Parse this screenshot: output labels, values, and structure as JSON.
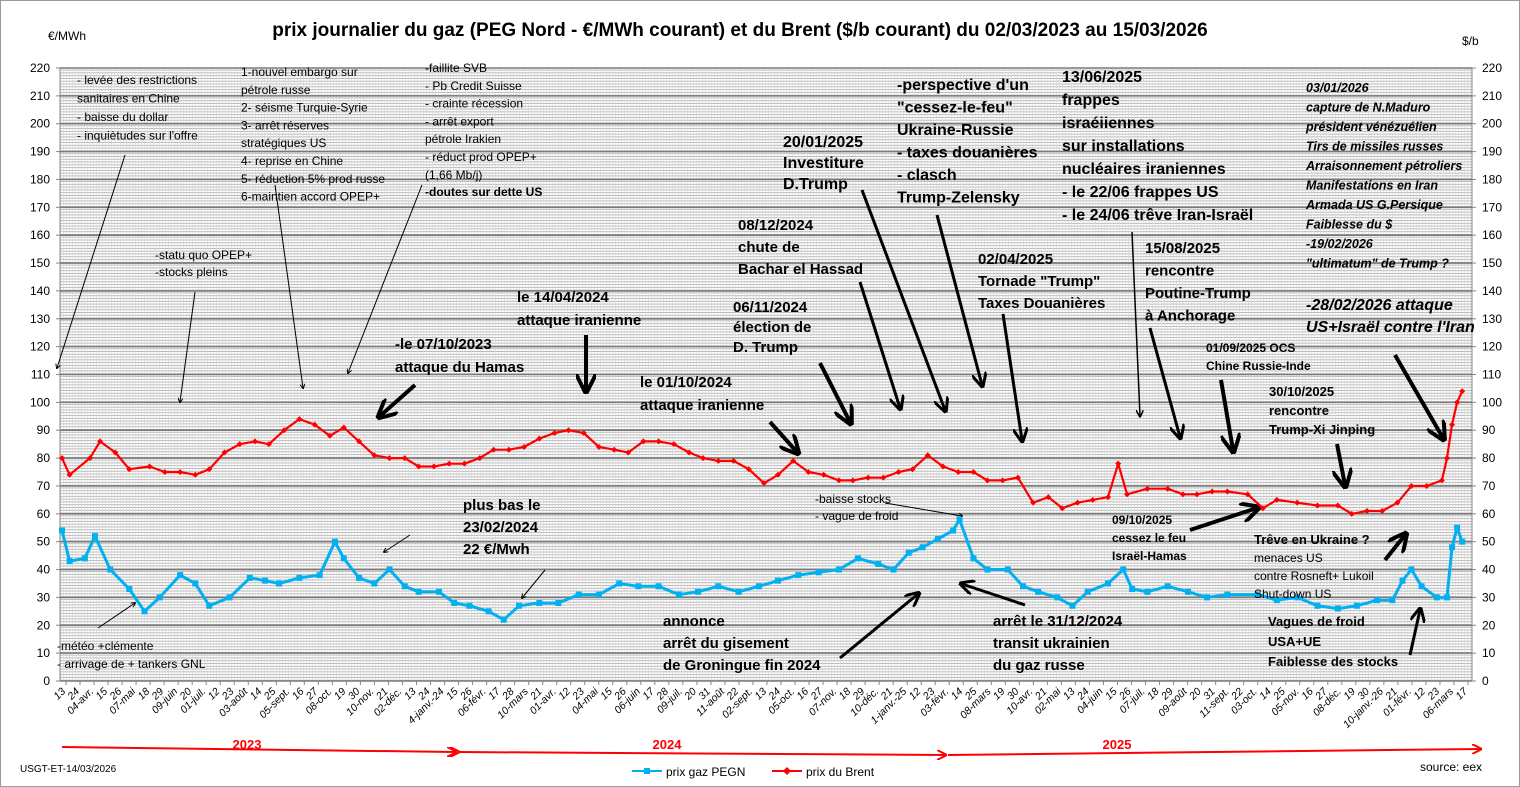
{
  "chart_data": {
    "type": "line",
    "title": "prix journalier du gaz (PEG Nord - €/MWh courant) et du Brent ($/b courant) du 02/03/2023  au 15/03/2026",
    "ylabel_left": "€/MWh",
    "ylabel_right": "$/b",
    "ylim": [
      0,
      220
    ],
    "yticks": [
      0,
      10,
      20,
      30,
      40,
      50,
      60,
      70,
      80,
      90,
      100,
      110,
      120,
      130,
      140,
      150,
      160,
      170,
      180,
      190,
      200,
      210,
      220
    ],
    "xlim_days": [
      0,
      1106
    ],
    "grid": true,
    "legend_position": "bottom-center",
    "xtick_labels": [
      "13",
      "24",
      "04-avr.",
      "15",
      "26",
      "07-mai",
      "18",
      "29",
      "09-juin",
      "20",
      "01-juil.",
      "12",
      "23",
      "03-août",
      "14",
      "25",
      "05-sept.",
      "16",
      "27",
      "08-oct.",
      "19",
      "30",
      "10-nov.",
      "21",
      "02-déc.",
      "13",
      "24",
      "4-janv.-24",
      "15",
      "26",
      "06-févr.",
      "17",
      "28",
      "10-mars",
      "21",
      "01-avr.",
      "12",
      "23",
      "04-mai",
      "15",
      "26",
      "06-juin",
      "17",
      "28",
      "09-juil.",
      "20",
      "31",
      "11-août",
      "22",
      "02-sept.",
      "13",
      "24",
      "05-oct.",
      "16",
      "27",
      "07-nov.",
      "18",
      "29",
      "10-déc.",
      "21",
      "1-janv.-25",
      "12",
      "23",
      "03-févr.",
      "14",
      "25",
      "08-mars",
      "19",
      "30",
      "10-avr.",
      "21",
      "02-mai",
      "13",
      "24",
      "04-juin",
      "15",
      "26",
      "07-juil.",
      "18",
      "29",
      "09-août",
      "20",
      "31",
      "11-sept.",
      "22",
      "03-oct.",
      "14",
      "25",
      "05-nov.",
      "16",
      "27",
      "08-déc.",
      "19",
      "30",
      "10-janv.-26",
      "21",
      "01-févr.",
      "12",
      "23",
      "06-mars",
      "17"
    ],
    "years": [
      "2023",
      "2024",
      "2025"
    ],
    "series": [
      {
        "name": "prix gaz PEGN",
        "color": "#00b0f0",
        "points": [
          [
            0,
            54
          ],
          [
            6,
            43
          ],
          [
            18,
            44
          ],
          [
            26,
            52
          ],
          [
            38,
            40
          ],
          [
            53,
            33
          ],
          [
            65,
            25
          ],
          [
            77,
            30
          ],
          [
            93,
            38
          ],
          [
            105,
            35
          ],
          [
            116,
            27
          ],
          [
            132,
            30
          ],
          [
            148,
            37
          ],
          [
            160,
            36
          ],
          [
            171,
            35
          ],
          [
            187,
            37
          ],
          [
            203,
            38
          ],
          [
            215,
            50
          ],
          [
            222,
            44
          ],
          [
            234,
            37
          ],
          [
            246,
            35
          ],
          [
            258,
            40
          ],
          [
            270,
            34
          ],
          [
            281,
            32
          ],
          [
            297,
            32
          ],
          [
            309,
            28
          ],
          [
            321,
            27
          ],
          [
            336,
            25
          ],
          [
            348,
            22
          ],
          [
            360,
            27
          ],
          [
            376,
            28
          ],
          [
            391,
            28
          ],
          [
            407,
            31
          ],
          [
            423,
            31
          ],
          [
            439,
            35
          ],
          [
            454,
            34
          ],
          [
            470,
            34
          ],
          [
            486,
            31
          ],
          [
            501,
            32
          ],
          [
            517,
            34
          ],
          [
            533,
            32
          ],
          [
            549,
            34
          ],
          [
            564,
            36
          ],
          [
            580,
            38
          ],
          [
            596,
            39
          ],
          [
            612,
            40
          ],
          [
            627,
            44
          ],
          [
            643,
            42
          ],
          [
            655,
            40
          ],
          [
            667,
            46
          ],
          [
            678,
            48
          ],
          [
            690,
            51
          ],
          [
            702,
            54
          ],
          [
            707,
            58
          ],
          [
            718,
            44
          ],
          [
            729,
            40
          ],
          [
            745,
            40
          ],
          [
            757,
            34
          ],
          [
            769,
            32
          ],
          [
            784,
            30
          ],
          [
            796,
            27
          ],
          [
            808,
            32
          ],
          [
            824,
            35
          ],
          [
            836,
            40
          ],
          [
            843,
            33
          ],
          [
            855,
            32
          ],
          [
            871,
            34
          ],
          [
            887,
            32
          ],
          [
            902,
            30
          ],
          [
            918,
            31
          ],
          [
            942,
            31
          ],
          [
            957,
            29
          ],
          [
            973,
            30
          ],
          [
            989,
            27
          ],
          [
            1005,
            26
          ],
          [
            1020,
            27
          ],
          [
            1036,
            29
          ],
          [
            1048,
            29
          ],
          [
            1056,
            36
          ],
          [
            1063,
            40
          ],
          [
            1071,
            34
          ],
          [
            1083,
            30
          ],
          [
            1091,
            30
          ],
          [
            1095,
            48
          ],
          [
            1099,
            55
          ],
          [
            1103,
            50
          ]
        ]
      },
      {
        "name": "prix du Brent",
        "color": "#ff0000",
        "points": [
          [
            0,
            80
          ],
          [
            6,
            74
          ],
          [
            22,
            80
          ],
          [
            30,
            86
          ],
          [
            42,
            82
          ],
          [
            53,
            76
          ],
          [
            69,
            77
          ],
          [
            81,
            75
          ],
          [
            93,
            75
          ],
          [
            105,
            74
          ],
          [
            116,
            76
          ],
          [
            128,
            82
          ],
          [
            140,
            85
          ],
          [
            152,
            86
          ],
          [
            163,
            85
          ],
          [
            175,
            90
          ],
          [
            187,
            94
          ],
          [
            199,
            92
          ],
          [
            211,
            88
          ],
          [
            222,
            91
          ],
          [
            234,
            86
          ],
          [
            246,
            81
          ],
          [
            258,
            80
          ],
          [
            270,
            80
          ],
          [
            281,
            77
          ],
          [
            293,
            77
          ],
          [
            305,
            78
          ],
          [
            317,
            78
          ],
          [
            329,
            80
          ],
          [
            340,
            83
          ],
          [
            352,
            83
          ],
          [
            364,
            84
          ],
          [
            376,
            87
          ],
          [
            388,
            89
          ],
          [
            399,
            90
          ],
          [
            411,
            89
          ],
          [
            423,
            84
          ],
          [
            435,
            83
          ],
          [
            446,
            82
          ],
          [
            458,
            86
          ],
          [
            470,
            86
          ],
          [
            482,
            85
          ],
          [
            494,
            82
          ],
          [
            505,
            80
          ],
          [
            517,
            79
          ],
          [
            529,
            79
          ],
          [
            541,
            76
          ],
          [
            553,
            71
          ],
          [
            564,
            74
          ],
          [
            576,
            79
          ],
          [
            588,
            75
          ],
          [
            600,
            74
          ],
          [
            612,
            72
          ],
          [
            623,
            72
          ],
          [
            635,
            73
          ],
          [
            647,
            73
          ],
          [
            659,
            75
          ],
          [
            670,
            76
          ],
          [
            682,
            81
          ],
          [
            694,
            77
          ],
          [
            706,
            75
          ],
          [
            718,
            75
          ],
          [
            729,
            72
          ],
          [
            741,
            72
          ],
          [
            753,
            73
          ],
          [
            765,
            64
          ],
          [
            777,
            66
          ],
          [
            788,
            62
          ],
          [
            800,
            64
          ],
          [
            812,
            65
          ],
          [
            824,
            66
          ],
          [
            832,
            78
          ],
          [
            839,
            67
          ],
          [
            855,
            69
          ],
          [
            871,
            69
          ],
          [
            883,
            67
          ],
          [
            894,
            67
          ],
          [
            906,
            68
          ],
          [
            918,
            68
          ],
          [
            934,
            67
          ],
          [
            946,
            62
          ],
          [
            957,
            65
          ],
          [
            973,
            64
          ],
          [
            989,
            63
          ],
          [
            1005,
            63
          ],
          [
            1016,
            60
          ],
          [
            1028,
            61
          ],
          [
            1040,
            61
          ],
          [
            1052,
            64
          ],
          [
            1063,
            70
          ],
          [
            1075,
            70
          ],
          [
            1087,
            72
          ],
          [
            1091,
            80
          ],
          [
            1095,
            92
          ],
          [
            1099,
            100
          ],
          [
            1103,
            104
          ]
        ]
      }
    ],
    "annotations": [
      {
        "id": "chine",
        "lines": [
          "- levée des restrictions",
          "sanitaires en Chine",
          "- baisse du dollar",
          "- inquiètudes sur l'offre"
        ]
      },
      {
        "id": "embargo",
        "lines": [
          "1-nouvel embargo sur",
          "pétrole russe",
          "2- séisme Turquie-Syrie",
          "3- arrêt réserves",
          "stratégiques US",
          "4- reprise en Chine",
          "5- réduction 5% prod russe",
          "6-maintien accord OPEP+"
        ]
      },
      {
        "id": "svb",
        "lines": [
          "-faillite SVB",
          "- Pb Credit Suisse",
          "- crainte récession",
          "- arrêt export",
          "pétrole Irakien",
          "- réduct prod OPEP+",
          "(1,66 Mb/j)"
        ]
      },
      {
        "id": "svb_bold",
        "lines": [
          "-doutes sur dette US"
        ]
      },
      {
        "id": "opep",
        "lines": [
          "-statu quo OPEP+",
          "-stocks pleins"
        ]
      },
      {
        "id": "hamas",
        "lines": [
          "-le 07/10/2023",
          "attaque du Hamas"
        ]
      },
      {
        "id": "iran1",
        "lines": [
          "le 14/04/2024",
          "attaque iranienne"
        ]
      },
      {
        "id": "low",
        "lines": [
          "plus bas le",
          "23/02/2024",
          "22 €/Mwh"
        ]
      },
      {
        "id": "iran2",
        "lines": [
          "le 01/10/2024",
          "attaque iranienne"
        ]
      },
      {
        "id": "election",
        "lines": [
          "06/11/2024",
          "élection de",
          "D. Trump"
        ]
      },
      {
        "id": "assad",
        "lines": [
          "08/12/2024",
          " chute de",
          "Bachar el Hassad"
        ]
      },
      {
        "id": "investiture",
        "lines": [
          "20/01/2025",
          "Investiture",
          "D.Trump"
        ]
      },
      {
        "id": "ukraine",
        "lines": [
          "-perspective d'un",
          "\"cessez-le-feu\"",
          "Ukraine-Russie",
          "- taxes douanières",
          "- clasch",
          "Trump-Zelensky"
        ]
      },
      {
        "id": "frappes",
        "lines": [
          "13/06/2025",
          "frappes",
          "israéiiennes",
          "sur installations",
          "nucléaires iraniennes",
          "- le 22/06 frappes US",
          "- le 24/06 trêve Iran-Israël"
        ]
      },
      {
        "id": "tornade",
        "lines": [
          "02/04/2025",
          "Tornade \"Trump\"",
          "Taxes Douanières"
        ]
      },
      {
        "id": "anchorage",
        "lines": [
          "15/08/2025",
          "rencontre",
          "Poutine-Trump",
          "à Anchorage"
        ]
      },
      {
        "id": "maduro",
        "lines": [
          "03/01/2026",
          "capture de N.Maduro",
          "président vénézuélien",
          "Tirs de missiles russes",
          "Arraisonnement  pétroliers",
          "Manifestations en Iran",
          "Armada US  G.Persique",
          "Faiblesse du $",
          " -19/02/2026",
          "\"ultimatum\" de Trump ?"
        ]
      },
      {
        "id": "attack2026",
        "lines": [
          "-28/02/2026  attaque",
          "US+Israël  contre l'Iran"
        ]
      },
      {
        "id": "ocs",
        "lines": [
          "01/09/2025  OCS",
          "Chine  Russie-Inde"
        ]
      },
      {
        "id": "xi",
        "lines": [
          "30/10/2025",
          "rencontre",
          "Trump-Xi Jinping"
        ]
      },
      {
        "id": "gaza",
        "lines": [
          "09/10/2025",
          "cessez le feu",
          "Israël-Hamas"
        ]
      },
      {
        "id": "stocks",
        "lines": [
          "-baisse  stocks",
          "- vague de froid"
        ]
      },
      {
        "id": "treve",
        "lines": [
          "Trêve  en Ukraine ?"
        ]
      },
      {
        "id": "rosneft",
        "lines": [
          "menaces US",
          "contre Rosneft+ Lukoil",
          "Shut-down US"
        ]
      },
      {
        "id": "froid",
        "lines": [
          "Vagues de froid",
          "USA+UE",
          "Faiblesse des stocks"
        ]
      },
      {
        "id": "groningue",
        "lines": [
          "annonce",
          "arrêt du gisement",
          "de Groningue fin 2024"
        ]
      },
      {
        "id": "transit",
        "lines": [
          "arrêt le 31/12/2024",
          "transit ukrainien",
          "du gaz russe"
        ]
      },
      {
        "id": "meteo",
        "lines": [
          "-météo +clémente",
          "- arrivage de + tankers GNL"
        ]
      }
    ]
  },
  "footer": {
    "author": "USGT-ET-14/03/2026",
    "source": "source: eex",
    "legend_gas": "prix gaz PEGN",
    "legend_brent": "prix du Brent"
  }
}
